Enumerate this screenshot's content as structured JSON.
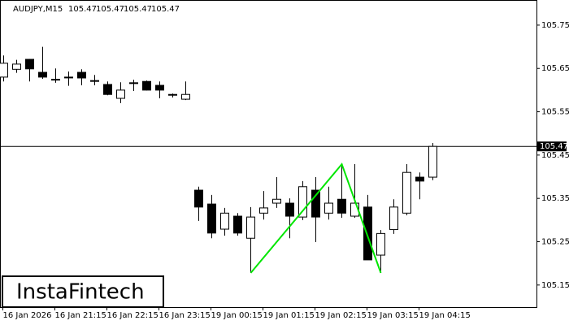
{
  "chart_data": {
    "type": "candlestick",
    "symbol": "AUDJPY,M15",
    "header_ohlc": [
      105.47,
      105.47,
      105.47,
      105.47
    ],
    "watermark": "InstaFintech",
    "categories": [
      "16 Jan 2026",
      null,
      null,
      null,
      "16 Jan 21:15",
      null,
      null,
      null,
      "16 Jan 22:15",
      null,
      null,
      null,
      "16 Jan 23:15",
      null,
      null,
      null,
      "19 Jan 00:15",
      null,
      null,
      null,
      "19 Jan 01:15",
      null,
      null,
      null,
      "19 Jan 02:15",
      null,
      null,
      null,
      "19 Jan 03:15",
      null,
      null,
      null,
      "19 Jan 04:15",
      null
    ],
    "open": [
      105.63,
      105.648,
      105.671,
      105.641,
      105.625,
      105.63,
      105.641,
      105.622,
      105.613,
      105.581,
      105.617,
      105.62,
      105.611,
      105.59,
      105.579,
      105.369,
      105.337,
      105.279,
      105.309,
      105.258,
      105.316,
      105.339,
      105.339,
      105.307,
      105.369,
      105.316,
      105.348,
      105.309,
      105.33,
      105.219,
      105.278,
      105.316,
      105.399,
      105.399
    ],
    "high": [
      105.68,
      105.67,
      105.672,
      105.7,
      105.65,
      105.643,
      105.648,
      105.635,
      105.62,
      105.618,
      105.624,
      105.622,
      105.62,
      105.592,
      105.62,
      105.377,
      105.358,
      105.328,
      105.316,
      105.33,
      105.367,
      105.399,
      105.35,
      105.39,
      105.399,
      105.377,
      105.429,
      105.429,
      105.358,
      105.277,
      105.348,
      105.429,
      105.41,
      105.478
    ],
    "low": [
      105.62,
      105.64,
      105.62,
      105.626,
      105.617,
      105.61,
      105.611,
      105.611,
      105.588,
      105.57,
      105.598,
      105.599,
      105.581,
      105.583,
      105.577,
      105.298,
      105.258,
      105.264,
      105.264,
      105.178,
      105.301,
      105.328,
      105.258,
      105.3,
      105.249,
      105.301,
      105.305,
      105.305,
      105.208,
      105.178,
      105.268,
      105.311,
      105.348,
      105.392
    ],
    "close": [
      105.662,
      105.66,
      105.649,
      105.63,
      105.625,
      105.63,
      105.628,
      105.622,
      105.59,
      105.6,
      105.617,
      105.6,
      105.6,
      105.59,
      105.59,
      105.33,
      105.27,
      105.316,
      105.27,
      105.307,
      105.328,
      105.348,
      105.309,
      105.377,
      105.307,
      105.339,
      105.316,
      105.339,
      105.208,
      105.269,
      105.33,
      105.41,
      105.39,
      105.47
    ],
    "up_color": "#ffffff",
    "down_color": "#000000",
    "current_price": 105.47,
    "pattern": {
      "color": "#00e600",
      "points": [
        {
          "index": 19,
          "value": 105.178
        },
        {
          "index": 26,
          "value": 105.429
        },
        {
          "index": 29,
          "value": 105.178
        }
      ]
    },
    "ylim": [
      105.099,
      105.808
    ],
    "yticks": [
      105.15,
      105.25,
      105.35,
      105.45,
      105.55,
      105.65,
      105.75
    ]
  }
}
